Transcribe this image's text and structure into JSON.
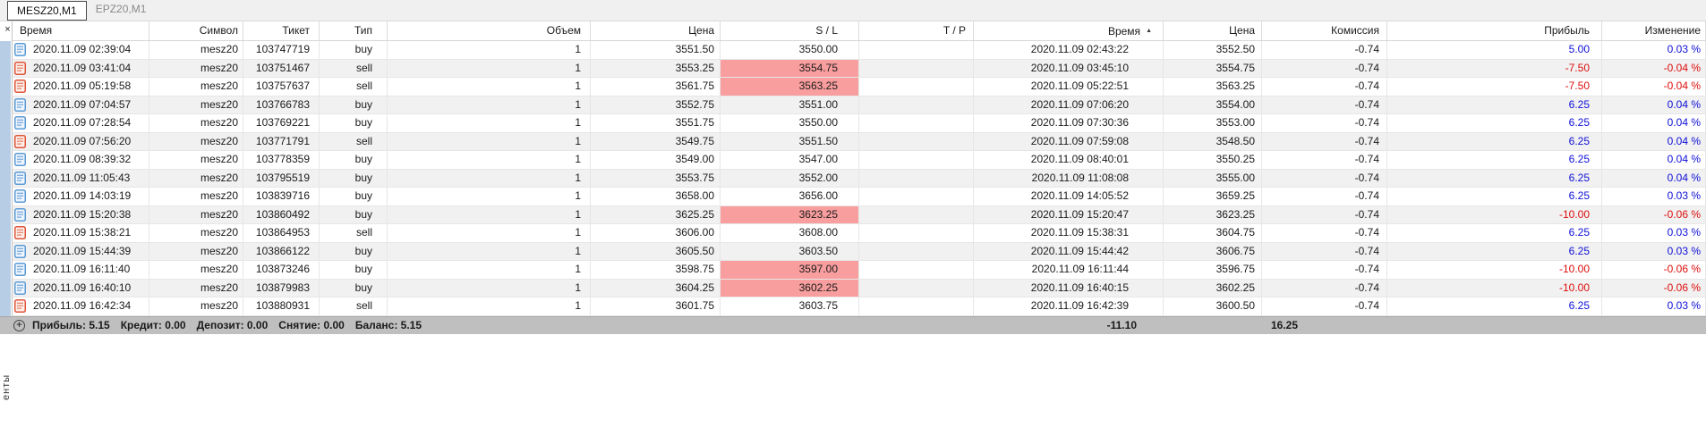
{
  "tabs": [
    {
      "label": "MESZ20,M1",
      "active": true
    },
    {
      "label": "EPZ20,M1",
      "active": false
    }
  ],
  "close_button": "×",
  "side_tab_label": "енты",
  "sort_indicator": "▲",
  "table": {
    "columns": [
      {
        "label": "Время",
        "align": "left"
      },
      {
        "label": "Символ",
        "align": "right"
      },
      {
        "label": "Тикет",
        "align": "right"
      },
      {
        "label": "Тип",
        "align": "right"
      },
      {
        "label": "Объем",
        "align": "right"
      },
      {
        "label": "Цена",
        "align": "right"
      },
      {
        "label": "S / L",
        "align": "right"
      },
      {
        "label": "T / P",
        "align": "right"
      },
      {
        "label": "Время",
        "align": "right",
        "sorted": "ascending"
      },
      {
        "label": "Цена",
        "align": "right"
      },
      {
        "label": "Комиссия",
        "align": "right"
      },
      {
        "label": "Прибыль",
        "align": "right"
      },
      {
        "label": "Изменение",
        "align": "right"
      }
    ],
    "rows": [
      {
        "type": "buy",
        "open_time": "2020.11.09 02:39:04",
        "symbol": "mesz20",
        "ticket": "103747719",
        "volume": "1",
        "price": "3551.50",
        "sl": "3550.00",
        "sl_hl": false,
        "tp": "",
        "close_time": "2020.11.09 02:43:22",
        "close_price": "3552.50",
        "commission": "-0.74",
        "profit": "5.00",
        "change": "0.03 %"
      },
      {
        "type": "sell",
        "open_time": "2020.11.09 03:41:04",
        "symbol": "mesz20",
        "ticket": "103751467",
        "volume": "1",
        "price": "3553.25",
        "sl": "3554.75",
        "sl_hl": true,
        "tp": "",
        "close_time": "2020.11.09 03:45:10",
        "close_price": "3554.75",
        "commission": "-0.74",
        "profit": "-7.50",
        "change": "-0.04 %"
      },
      {
        "type": "sell",
        "open_time": "2020.11.09 05:19:58",
        "symbol": "mesz20",
        "ticket": "103757637",
        "volume": "1",
        "price": "3561.75",
        "sl": "3563.25",
        "sl_hl": true,
        "tp": "",
        "close_time": "2020.11.09 05:22:51",
        "close_price": "3563.25",
        "commission": "-0.74",
        "profit": "-7.50",
        "change": "-0.04 %"
      },
      {
        "type": "buy",
        "open_time": "2020.11.09 07:04:57",
        "symbol": "mesz20",
        "ticket": "103766783",
        "volume": "1",
        "price": "3552.75",
        "sl": "3551.00",
        "sl_hl": false,
        "tp": "",
        "close_time": "2020.11.09 07:06:20",
        "close_price": "3554.00",
        "commission": "-0.74",
        "profit": "6.25",
        "change": "0.04 %"
      },
      {
        "type": "buy",
        "open_time": "2020.11.09 07:28:54",
        "symbol": "mesz20",
        "ticket": "103769221",
        "volume": "1",
        "price": "3551.75",
        "sl": "3550.00",
        "sl_hl": false,
        "tp": "",
        "close_time": "2020.11.09 07:30:36",
        "close_price": "3553.00",
        "commission": "-0.74",
        "profit": "6.25",
        "change": "0.04 %"
      },
      {
        "type": "sell",
        "open_time": "2020.11.09 07:56:20",
        "symbol": "mesz20",
        "ticket": "103771791",
        "volume": "1",
        "price": "3549.75",
        "sl": "3551.50",
        "sl_hl": false,
        "tp": "",
        "close_time": "2020.11.09 07:59:08",
        "close_price": "3548.50",
        "commission": "-0.74",
        "profit": "6.25",
        "change": "0.04 %"
      },
      {
        "type": "buy",
        "open_time": "2020.11.09 08:39:32",
        "symbol": "mesz20",
        "ticket": "103778359",
        "volume": "1",
        "price": "3549.00",
        "sl": "3547.00",
        "sl_hl": false,
        "tp": "",
        "close_time": "2020.11.09 08:40:01",
        "close_price": "3550.25",
        "commission": "-0.74",
        "profit": "6.25",
        "change": "0.04 %"
      },
      {
        "type": "buy",
        "open_time": "2020.11.09 11:05:43",
        "symbol": "mesz20",
        "ticket": "103795519",
        "volume": "1",
        "price": "3553.75",
        "sl": "3552.00",
        "sl_hl": false,
        "tp": "",
        "close_time": "2020.11.09 11:08:08",
        "close_price": "3555.00",
        "commission": "-0.74",
        "profit": "6.25",
        "change": "0.04 %"
      },
      {
        "type": "buy",
        "open_time": "2020.11.09 14:03:19",
        "symbol": "mesz20",
        "ticket": "103839716",
        "volume": "1",
        "price": "3658.00",
        "sl": "3656.00",
        "sl_hl": false,
        "tp": "",
        "close_time": "2020.11.09 14:05:52",
        "close_price": "3659.25",
        "commission": "-0.74",
        "profit": "6.25",
        "change": "0.03 %"
      },
      {
        "type": "buy",
        "open_time": "2020.11.09 15:20:38",
        "symbol": "mesz20",
        "ticket": "103860492",
        "volume": "1",
        "price": "3625.25",
        "sl": "3623.25",
        "sl_hl": true,
        "tp": "",
        "close_time": "2020.11.09 15:20:47",
        "close_price": "3623.25",
        "commission": "-0.74",
        "profit": "-10.00",
        "change": "-0.06 %"
      },
      {
        "type": "sell",
        "open_time": "2020.11.09 15:38:21",
        "symbol": "mesz20",
        "ticket": "103864953",
        "volume": "1",
        "price": "3606.00",
        "sl": "3608.00",
        "sl_hl": false,
        "tp": "",
        "close_time": "2020.11.09 15:38:31",
        "close_price": "3604.75",
        "commission": "-0.74",
        "profit": "6.25",
        "change": "0.03 %"
      },
      {
        "type": "buy",
        "open_time": "2020.11.09 15:44:39",
        "symbol": "mesz20",
        "ticket": "103866122",
        "volume": "1",
        "price": "3605.50",
        "sl": "3603.50",
        "sl_hl": false,
        "tp": "",
        "close_time": "2020.11.09 15:44:42",
        "close_price": "3606.75",
        "commission": "-0.74",
        "profit": "6.25",
        "change": "0.03 %"
      },
      {
        "type": "buy",
        "open_time": "2020.11.09 16:11:40",
        "symbol": "mesz20",
        "ticket": "103873246",
        "volume": "1",
        "price": "3598.75",
        "sl": "3597.00",
        "sl_hl": true,
        "tp": "",
        "close_time": "2020.11.09 16:11:44",
        "close_price": "3596.75",
        "commission": "-0.74",
        "profit": "-10.00",
        "change": "-0.06 %"
      },
      {
        "type": "buy",
        "open_time": "2020.11.09 16:40:10",
        "symbol": "mesz20",
        "ticket": "103879983",
        "volume": "1",
        "price": "3604.25",
        "sl": "3602.25",
        "sl_hl": true,
        "tp": "",
        "close_time": "2020.11.09 16:40:15",
        "close_price": "3602.25",
        "commission": "-0.74",
        "profit": "-10.00",
        "change": "-0.06 %"
      },
      {
        "type": "sell",
        "open_time": "2020.11.09 16:42:34",
        "symbol": "mesz20",
        "ticket": "103880931",
        "volume": "1",
        "price": "3601.75",
        "sl": "3603.75",
        "sl_hl": false,
        "tp": "",
        "close_time": "2020.11.09 16:42:39",
        "close_price": "3600.50",
        "commission": "-0.74",
        "profit": "6.25",
        "change": "0.03 %"
      }
    ]
  },
  "footer": {
    "summary": [
      [
        "Прибыль",
        "5.15"
      ],
      [
        "Кредит",
        "0.00"
      ],
      [
        "Депозит",
        "0.00"
      ],
      [
        "Снятие",
        "0.00"
      ],
      [
        "Баланс",
        "5.15"
      ]
    ],
    "commission_total": "-11.10",
    "profit_total": "16.25"
  },
  "colors": {
    "positive": "#0f0fd7",
    "negative": "#dd0e0e",
    "sl_highlight": "#f99e9e",
    "buy_icon": "#5b9bd5",
    "sell_icon": "#e0553a"
  }
}
